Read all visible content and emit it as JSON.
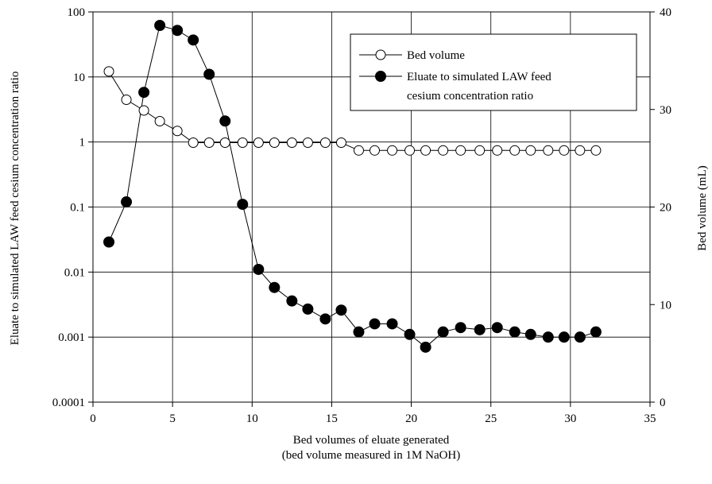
{
  "chart_data": {
    "type": "line",
    "xlabel": [
      "Bed volumes of eluate generated",
      "(bed volume measured in 1M NaOH)"
    ],
    "ylabel_left": "Eluate to simulated LAW feed cesium concentration ratio",
    "ylabel_right": "Bed volume (mL)",
    "x_range": [
      0,
      35
    ],
    "x_ticks": [
      "0",
      "5",
      "10",
      "15",
      "20",
      "25",
      "30",
      "35"
    ],
    "y_left_scale": "log",
    "y_left_range": [
      0.0001,
      100
    ],
    "y_left_ticks": [
      "0.0001",
      "0.001",
      "0.01",
      "0.1",
      "1",
      "10",
      "100"
    ],
    "y_right_range": [
      0,
      40
    ],
    "y_right_ticks": [
      "0",
      "10",
      "20",
      "30",
      "40"
    ],
    "grid": true,
    "legend_position": "top-right",
    "series": [
      {
        "name": "Bed volume",
        "axis": "right",
        "marker": "open-circle",
        "x": [
          1.0,
          2.1,
          3.2,
          4.2,
          5.3,
          6.3,
          7.3,
          8.3,
          9.4,
          10.4,
          11.4,
          12.5,
          13.5,
          14.6,
          15.6,
          16.7,
          17.7,
          18.8,
          19.9,
          20.9,
          22.0,
          23.1,
          24.3,
          25.4,
          26.5,
          27.5,
          28.6,
          29.6,
          30.6,
          31.6
        ],
        "y": [
          33.9,
          31.0,
          29.9,
          28.8,
          27.8,
          26.6,
          26.6,
          26.6,
          26.6,
          26.6,
          26.6,
          26.6,
          26.6,
          26.6,
          26.6,
          25.8,
          25.8,
          25.8,
          25.8,
          25.8,
          25.8,
          25.8,
          25.8,
          25.8,
          25.8,
          25.8,
          25.8,
          25.8,
          25.8,
          25.8
        ]
      },
      {
        "name": "Eluate to simulated LAW feed cesium concentration ratio",
        "axis": "left",
        "marker": "filled-circle",
        "x": [
          1.0,
          2.1,
          3.2,
          4.2,
          5.3,
          6.3,
          7.3,
          8.3,
          9.4,
          10.4,
          11.4,
          12.5,
          13.5,
          14.6,
          15.6,
          16.7,
          17.7,
          18.8,
          19.9,
          20.9,
          22.0,
          23.1,
          24.3,
          25.4,
          26.5,
          27.5,
          28.6,
          29.6,
          30.6,
          31.6
        ],
        "y": [
          0.029,
          0.12,
          5.8,
          62,
          52,
          37,
          11,
          2.1,
          0.11,
          0.011,
          0.0058,
          0.0036,
          0.0027,
          0.0019,
          0.0026,
          0.0012,
          0.0016,
          0.0016,
          0.0011,
          0.0007,
          0.0012,
          0.0014,
          0.0013,
          0.0014,
          0.0012,
          0.0011,
          0.001,
          0.001,
          0.001,
          0.0012
        ]
      }
    ],
    "legend_lines": [
      [
        "Bed volume"
      ],
      [
        "Eluate to simulated LAW feed",
        "cesium concentration ratio"
      ]
    ]
  }
}
